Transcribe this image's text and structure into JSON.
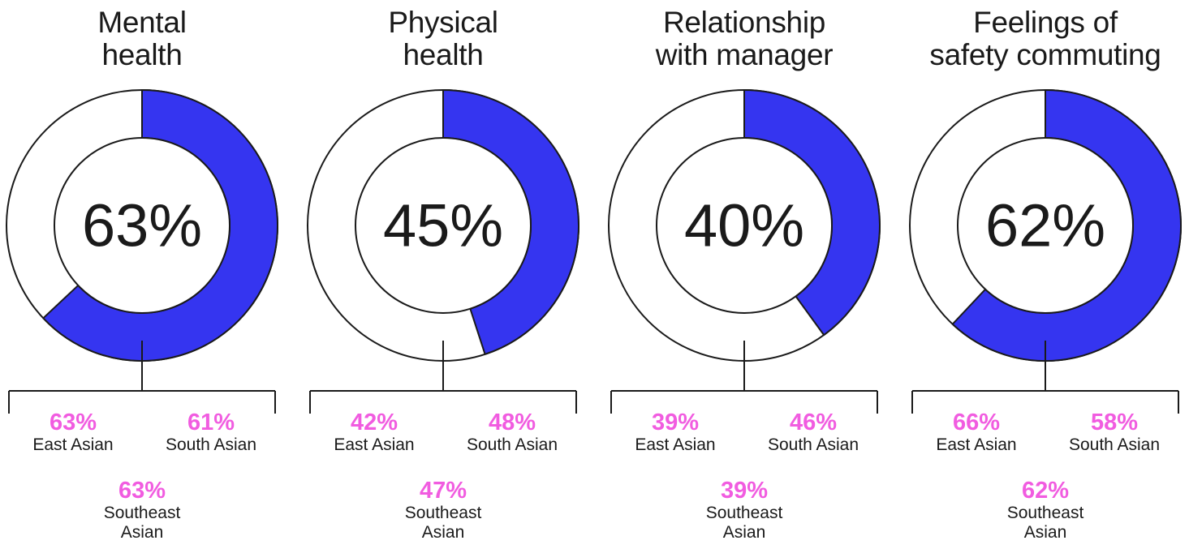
{
  "colors": {
    "accent": "#3535f0",
    "highlight": "#f15ce0",
    "ink": "#1a1a1a",
    "ring_bg": "#ffffff"
  },
  "panels": [
    {
      "title": "Mental\nhealth",
      "value_label": "63%",
      "groups": [
        {
          "pct": "63%",
          "name": "East Asian"
        },
        {
          "pct": "61%",
          "name": "South Asian"
        },
        {
          "pct": "63%",
          "name": "Southeast\nAsian"
        }
      ]
    },
    {
      "title": "Physical\nhealth",
      "value_label": "45%",
      "groups": [
        {
          "pct": "42%",
          "name": "East Asian"
        },
        {
          "pct": "48%",
          "name": "South Asian"
        },
        {
          "pct": "47%",
          "name": "Southeast\nAsian"
        }
      ]
    },
    {
      "title": "Relationship\nwith manager",
      "value_label": "40%",
      "groups": [
        {
          "pct": "39%",
          "name": "East Asian"
        },
        {
          "pct": "46%",
          "name": "South Asian"
        },
        {
          "pct": "39%",
          "name": "Southeast\nAsian"
        }
      ]
    },
    {
      "title": "Feelings of\nsafety commuting",
      "value_label": "62%",
      "groups": [
        {
          "pct": "66%",
          "name": "East Asian"
        },
        {
          "pct": "58%",
          "name": "South Asian"
        },
        {
          "pct": "62%",
          "name": "Southeast\nAsian"
        }
      ]
    }
  ],
  "chart_data": [
    {
      "type": "pie",
      "title": "Mental health",
      "values": [
        63,
        37
      ],
      "categories": [
        "share",
        "remainder"
      ],
      "breakdown": {
        "categories": [
          "East Asian",
          "South Asian",
          "Southeast Asian"
        ],
        "values": [
          63,
          61,
          63
        ]
      }
    },
    {
      "type": "pie",
      "title": "Physical health",
      "values": [
        45,
        55
      ],
      "categories": [
        "share",
        "remainder"
      ],
      "breakdown": {
        "categories": [
          "East Asian",
          "South Asian",
          "Southeast Asian"
        ],
        "values": [
          42,
          48,
          47
        ]
      }
    },
    {
      "type": "pie",
      "title": "Relationship with manager",
      "values": [
        40,
        60
      ],
      "categories": [
        "share",
        "remainder"
      ],
      "breakdown": {
        "categories": [
          "East Asian",
          "South Asian",
          "Southeast Asian"
        ],
        "values": [
          39,
          46,
          39
        ]
      }
    },
    {
      "type": "pie",
      "title": "Feelings of safety commuting",
      "values": [
        62,
        38
      ],
      "categories": [
        "share",
        "remainder"
      ],
      "breakdown": {
        "categories": [
          "East Asian",
          "South Asian",
          "Southeast Asian"
        ],
        "values": [
          66,
          58,
          62
        ]
      }
    }
  ]
}
